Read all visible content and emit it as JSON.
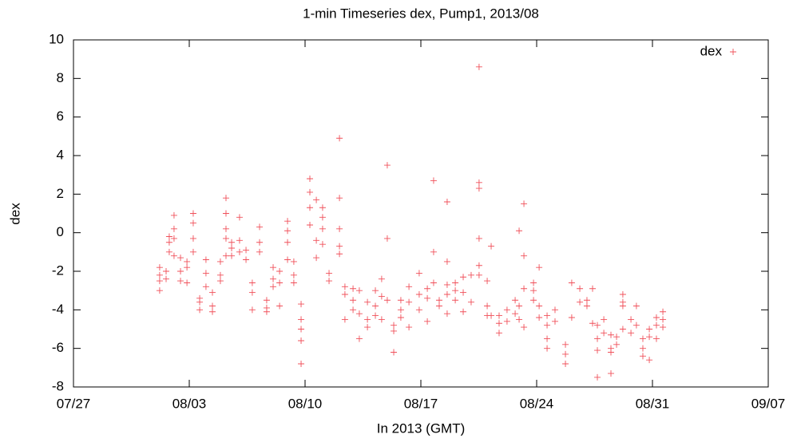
{
  "chart_data": {
    "type": "scatter",
    "title": "1-min Timeseries dex, Pump1, 2013/08",
    "x_label": "In 2013 (GMT)",
    "y_label": "dex",
    "xlim": [
      208,
      250
    ],
    "xticks": [
      {
        "value": 208,
        "label": "07/27"
      },
      {
        "value": 215,
        "label": "08/03"
      },
      {
        "value": 222,
        "label": "08/10"
      },
      {
        "value": 229,
        "label": "08/17"
      },
      {
        "value": 236,
        "label": "08/24"
      },
      {
        "value": 243,
        "label": "08/31"
      },
      {
        "value": 250,
        "label": "09/07"
      }
    ],
    "ylim": [
      -8,
      10
    ],
    "yticks": [
      -8,
      -6,
      -4,
      -2,
      0,
      2,
      4,
      6,
      8,
      10
    ],
    "legend": "top right",
    "grid": false,
    "series": [
      {
        "name": "dex",
        "color": "#f0505a",
        "x": [
          213.21,
          213.21,
          213.21,
          213.21,
          213.6,
          213.6,
          213.79,
          213.79,
          213.79,
          214.08,
          214.08,
          214.08,
          214.08,
          214.47,
          214.47,
          214.47,
          214.86,
          214.86,
          214.86,
          215.24,
          215.24,
          215.24,
          215.24,
          215.63,
          215.63,
          215.63,
          216.01,
          216.01,
          216.01,
          216.4,
          216.4,
          216.4,
          216.88,
          216.88,
          216.88,
          217.22,
          217.22,
          217.22,
          217.22,
          217.22,
          217.56,
          217.56,
          217.56,
          218.04,
          218.04,
          218.04,
          218.43,
          218.43,
          218.81,
          218.81,
          218.81,
          219.25,
          219.25,
          219.25,
          219.68,
          219.68,
          219.68,
          220.07,
          220.07,
          220.07,
          220.46,
          220.46,
          220.46,
          220.94,
          220.94,
          220.94,
          220.94,
          221.32,
          221.32,
          221.32,
          221.76,
          221.76,
          221.76,
          221.76,
          221.76,
          222.29,
          222.29,
          222.29,
          222.29,
          222.68,
          222.68,
          222.68,
          223.06,
          223.06,
          223.06,
          223.06,
          223.45,
          223.45,
          224.08,
          224.08,
          224.08,
          224.08,
          224.08,
          224.41,
          224.41,
          224.41,
          224.9,
          224.9,
          224.9,
          225.28,
          225.28,
          225.28,
          225.77,
          225.77,
          225.77,
          226.25,
          226.25,
          226.25,
          226.63,
          226.63,
          226.63,
          226.97,
          226.97,
          226.97,
          227.36,
          227.36,
          227.36,
          227.79,
          227.79,
          227.79,
          228.28,
          228.28,
          228.28,
          228.9,
          228.9,
          228.9,
          229.39,
          229.39,
          229.39,
          229.77,
          229.77,
          229.77,
          230.11,
          230.11,
          230.59,
          230.59,
          230.59,
          230.59,
          230.59,
          231.08,
          231.08,
          231.08,
          231.56,
          231.56,
          231.56,
          232.04,
          232.04,
          232.52,
          232.52,
          232.52,
          232.52,
          232.52,
          232.52,
          233.01,
          233.01,
          233.01,
          233.25,
          233.25,
          233.73,
          233.73,
          233.73,
          234.21,
          234.21,
          234.7,
          234.7,
          234.94,
          234.94,
          234.94,
          235.23,
          235.23,
          235.23,
          235.23,
          235.81,
          235.81,
          235.81,
          236.15,
          236.15,
          236.15,
          236.63,
          236.63,
          236.63,
          236.63,
          237.11,
          237.11,
          237.74,
          237.74,
          237.74,
          238.12,
          238.12,
          238.61,
          238.61,
          239.04,
          239.04,
          239.38,
          239.38,
          239.67,
          239.67,
          239.67,
          239.67,
          240.06,
          240.06,
          240.49,
          240.49,
          240.49,
          240.49,
          240.83,
          240.83,
          241.21,
          241.21,
          241.21,
          241.21,
          241.7,
          241.7,
          242.03,
          242.03,
          242.42,
          242.42,
          242.42,
          242.81,
          242.81,
          242.81,
          243.24,
          243.24,
          243.24,
          243.63,
          243.63,
          243.63
        ],
        "values": [
          -2.2,
          -2.5,
          -3.0,
          -1.8,
          -2.4,
          -2.0,
          -0.5,
          -1.0,
          -0.2,
          0.9,
          0.2,
          -0.3,
          -1.2,
          -1.3,
          -2.0,
          -2.5,
          -1.5,
          -1.8,
          -2.6,
          1.0,
          0.5,
          -0.3,
          -1.0,
          -3.4,
          -3.6,
          -4.0,
          -1.4,
          -2.1,
          -2.8,
          -3.1,
          -3.8,
          -4.1,
          -1.5,
          -2.5,
          -2.2,
          1.8,
          1.0,
          0.2,
          -0.3,
          -1.2,
          -0.5,
          -1.2,
          -0.8,
          0.8,
          -0.4,
          -1.0,
          -0.9,
          -1.4,
          -2.6,
          -3.1,
          -4.0,
          0.3,
          -0.5,
          -1.0,
          -3.5,
          -3.9,
          -4.1,
          -1.8,
          -2.4,
          -2.8,
          -2.0,
          -2.6,
          -3.8,
          0.1,
          -0.5,
          -1.4,
          0.6,
          -1.5,
          -2.2,
          -2.6,
          -4.5,
          -5.0,
          -5.6,
          -6.8,
          -3.7,
          2.8,
          2.1,
          1.3,
          0.4,
          -0.4,
          -1.3,
          1.7,
          1.3,
          0.8,
          0.2,
          -0.6,
          -2.1,
          -2.5,
          4.9,
          1.8,
          0.2,
          -0.7,
          -1.1,
          -2.8,
          -3.2,
          -4.5,
          -2.9,
          -3.5,
          -4.0,
          -3.0,
          -4.2,
          -5.5,
          -3.6,
          -4.5,
          -4.9,
          -3.0,
          -3.8,
          -4.3,
          -2.4,
          -3.3,
          -4.5,
          3.5,
          -0.3,
          -3.5,
          -4.8,
          -5.1,
          -6.2,
          -3.5,
          -4.0,
          -4.4,
          -2.8,
          -3.6,
          -4.9,
          -2.1,
          -3.2,
          -4.0,
          -2.9,
          -3.4,
          -4.6,
          2.7,
          -1.0,
          -2.6,
          -3.5,
          -3.8,
          1.6,
          -1.5,
          -2.7,
          -3.2,
          -4.2,
          -2.6,
          -3.0,
          -3.5,
          -3.1,
          -2.3,
          -4.1,
          -2.2,
          -3.6,
          8.6,
          2.6,
          2.3,
          -0.3,
          -1.7,
          -2.2,
          -2.5,
          -3.8,
          -4.3,
          -0.7,
          -4.3,
          -4.3,
          -4.7,
          -5.2,
          -4.0,
          -4.6,
          -3.5,
          -4.2,
          0.1,
          -3.8,
          -4.5,
          1.5,
          -1.2,
          -2.9,
          -4.9,
          -2.6,
          -3.0,
          -3.5,
          -1.8,
          -3.8,
          -4.4,
          -4.3,
          -4.8,
          -5.5,
          -6.0,
          -4.0,
          -4.6,
          -5.8,
          -6.3,
          -6.8,
          -2.6,
          -4.4,
          -2.9,
          -3.6,
          -3.5,
          -3.8,
          -2.9,
          -4.7,
          -4.8,
          -5.5,
          -6.1,
          -7.5,
          -4.5,
          -5.2,
          -5.3,
          -6.0,
          -7.3,
          -6.2,
          -5.4,
          -5.8,
          -3.6,
          -3.8,
          -5.0,
          -3.2,
          -4.5,
          -5.2,
          -3.8,
          -4.8,
          -5.5,
          -6.0,
          -6.4,
          -5.0,
          -5.4,
          -6.6,
          -4.4,
          -4.8,
          -5.5,
          -4.1,
          -4.5,
          -4.9
        ]
      }
    ]
  }
}
